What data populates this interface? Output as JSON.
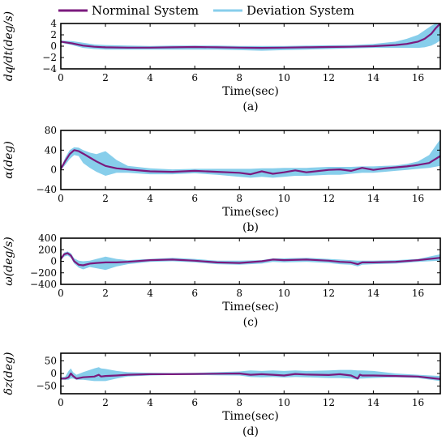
{
  "legend": {
    "items": [
      {
        "label": "Norminal System",
        "color": "#7b1a7e"
      },
      {
        "label": "Deviation System",
        "color": "#87ceeb"
      }
    ]
  },
  "colors": {
    "nominal": "#7b1a7e",
    "deviation": "#87ceeb",
    "axes": "#000000"
  },
  "chart_data": [
    {
      "type": "area",
      "id": "a",
      "caption": "(a)",
      "xlabel": "Time(sec)",
      "ylabel": "dq/dt(deg/s)",
      "xlim": [
        0,
        17
      ],
      "ylim": [
        -4,
        4
      ],
      "xticks": [
        0,
        2,
        4,
        6,
        8,
        10,
        12,
        14,
        16
      ],
      "yticks": [
        -4,
        -2,
        0,
        2,
        4
      ],
      "series": [
        {
          "name": "Norminal System",
          "kind": "line",
          "x": [
            0,
            0.5,
            1,
            1.5,
            2,
            3,
            4,
            5,
            6,
            7,
            8,
            9,
            10,
            11,
            12,
            13,
            14,
            15,
            15.5,
            16,
            16.3,
            16.6,
            16.8,
            17
          ],
          "y": [
            0.8,
            0.5,
            0.1,
            -0.1,
            -0.2,
            -0.25,
            -0.25,
            -0.2,
            -0.15,
            -0.2,
            -0.25,
            -0.3,
            -0.25,
            -0.2,
            -0.15,
            -0.1,
            0,
            0.2,
            0.4,
            0.8,
            1.3,
            2.2,
            3.2,
            4
          ]
        },
        {
          "name": "Deviation System",
          "kind": "band",
          "x": [
            0,
            0.5,
            1,
            1.5,
            2,
            3,
            4,
            5,
            6,
            7,
            8,
            9,
            10,
            11,
            12,
            13,
            14,
            15,
            15.5,
            16,
            16.3,
            16.6,
            16.8,
            17
          ],
          "upper": [
            1.0,
            0.9,
            0.6,
            0.3,
            0.2,
            0.1,
            0.05,
            0.1,
            0.1,
            0.1,
            0.05,
            0.05,
            0.05,
            0.1,
            0.15,
            0.2,
            0.4,
            0.8,
            1.3,
            2.0,
            2.8,
            3.6,
            4,
            4
          ],
          "lower": [
            0.6,
            0.2,
            -0.3,
            -0.5,
            -0.6,
            -0.6,
            -0.6,
            -0.6,
            -0.6,
            -0.6,
            -0.7,
            -0.8,
            -0.7,
            -0.6,
            -0.5,
            -0.4,
            -0.3,
            -0.3,
            -0.3,
            -0.3,
            -0.2,
            0.1,
            0.5,
            1.0
          ]
        }
      ]
    },
    {
      "type": "area",
      "id": "b",
      "caption": "(b)",
      "xlabel": "Time(sec)",
      "ylabel": "α(deg)",
      "xlim": [
        0,
        17
      ],
      "ylim": [
        -40,
        80
      ],
      "xticks": [
        0,
        2,
        4,
        6,
        8,
        10,
        12,
        14,
        16
      ],
      "yticks": [
        -40,
        0,
        40,
        80
      ],
      "series": [
        {
          "name": "Norminal System",
          "kind": "line",
          "x": [
            0,
            0.2,
            0.4,
            0.6,
            0.8,
            1.0,
            1.3,
            1.6,
            2.0,
            2.5,
            3,
            4,
            5,
            6,
            7,
            8,
            8.5,
            9,
            9.5,
            10,
            10.5,
            11,
            12,
            12.5,
            13,
            13.5,
            14,
            14.5,
            15,
            15.5,
            16,
            16.5,
            17
          ],
          "y": [
            2,
            18,
            32,
            40,
            38,
            33,
            25,
            17,
            8,
            3,
            1,
            -3,
            -4,
            -2,
            -4,
            -6,
            -9,
            -3,
            -8,
            -5,
            -1,
            -5,
            0,
            1,
            -2,
            4,
            0,
            3,
            5,
            7,
            10,
            14,
            28
          ]
        },
        {
          "name": "Deviation System",
          "kind": "band",
          "x": [
            0,
            0.2,
            0.4,
            0.6,
            0.8,
            1.0,
            1.3,
            1.6,
            2.0,
            2.5,
            3,
            4,
            5,
            6,
            7,
            8,
            8.5,
            9,
            9.5,
            10,
            10.5,
            11,
            12,
            12.5,
            13,
            13.5,
            14,
            14.5,
            15,
            15.5,
            16,
            16.5,
            17
          ],
          "upper": [
            4,
            25,
            40,
            46,
            45,
            40,
            35,
            32,
            38,
            20,
            8,
            3,
            1,
            2,
            2,
            2,
            2,
            3,
            3,
            4,
            4,
            4,
            6,
            6,
            6,
            7,
            7,
            8,
            9,
            12,
            17,
            30,
            62
          ],
          "lower": [
            0,
            10,
            22,
            30,
            28,
            14,
            4,
            -4,
            -12,
            -6,
            -6,
            -9,
            -9,
            -7,
            -10,
            -14,
            -16,
            -14,
            -16,
            -14,
            -12,
            -12,
            -10,
            -10,
            -8,
            -6,
            -6,
            -4,
            -2,
            0,
            2,
            4,
            8
          ]
        }
      ]
    },
    {
      "type": "area",
      "id": "c",
      "caption": "(c)",
      "xlabel": "Time(sec)",
      "ylabel": "ω(deg/s)",
      "xlim": [
        0,
        17
      ],
      "ylim": [
        -400,
        400
      ],
      "xticks": [
        0,
        2,
        4,
        6,
        8,
        10,
        12,
        14,
        16
      ],
      "yticks": [
        -400,
        -200,
        0,
        200,
        400
      ],
      "series": [
        {
          "name": "Norminal System",
          "kind": "line",
          "x": [
            0,
            0.15,
            0.3,
            0.45,
            0.6,
            0.8,
            1.0,
            1.3,
            1.6,
            2.0,
            2.5,
            3,
            4,
            5,
            6,
            7,
            8,
            9,
            9.5,
            10,
            11,
            12,
            12.5,
            13,
            13.3,
            13.5,
            14,
            15,
            16,
            17
          ],
          "y": [
            40,
            120,
            140,
            100,
            0,
            -60,
            -70,
            -40,
            -30,
            -20,
            -20,
            -10,
            20,
            30,
            10,
            -20,
            -30,
            0,
            30,
            20,
            30,
            10,
            -10,
            -20,
            -50,
            -20,
            -20,
            -10,
            20,
            60
          ]
        },
        {
          "name": "Deviation System",
          "kind": "band",
          "x": [
            0,
            0.15,
            0.3,
            0.45,
            0.6,
            0.8,
            1.0,
            1.3,
            1.6,
            2.0,
            2.5,
            3,
            4,
            5,
            6,
            7,
            8,
            9,
            9.5,
            10,
            11,
            12,
            12.5,
            13,
            13.3,
            13.5,
            14,
            15,
            16,
            17
          ],
          "upper": [
            60,
            150,
            170,
            140,
            50,
            10,
            0,
            10,
            40,
            80,
            40,
            20,
            40,
            60,
            40,
            10,
            10,
            20,
            50,
            50,
            60,
            40,
            30,
            20,
            10,
            10,
            10,
            20,
            40,
            120
          ]
        },
        {
          "name": "Deviation System",
          "kind": "band-lower",
          "x": [
            0,
            0.15,
            0.3,
            0.45,
            0.6,
            0.8,
            1.0,
            1.3,
            1.6,
            2.0,
            2.5,
            3,
            4,
            5,
            6,
            7,
            8,
            9,
            9.5,
            10,
            11,
            12,
            12.5,
            13,
            13.3,
            13.5,
            14,
            15,
            16,
            17
          ],
          "lower": [
            20,
            80,
            100,
            60,
            -40,
            -110,
            -140,
            -100,
            -120,
            -150,
            -90,
            -50,
            -10,
            0,
            -20,
            -50,
            -60,
            -40,
            -10,
            -20,
            -10,
            -30,
            -50,
            -60,
            -90,
            -60,
            -50,
            -40,
            -10,
            10
          ]
        }
      ]
    },
    {
      "type": "area",
      "id": "d",
      "caption": "(d)",
      "xlabel": "Time(sec)",
      "ylabel": "δz(deg)",
      "xlim": [
        0,
        17
      ],
      "ylim": [
        -80,
        80
      ],
      "xticks": [
        0,
        2,
        4,
        6,
        8,
        10,
        12,
        14,
        16
      ],
      "yticks": [
        -50,
        0,
        50
      ],
      "series": [
        {
          "name": "Norminal System",
          "kind": "line",
          "x": [
            0,
            0.2,
            0.35,
            0.45,
            0.55,
            0.7,
            1.0,
            1.5,
            1.7,
            1.8,
            2.0,
            2.5,
            3,
            4,
            5,
            6,
            7,
            8,
            8.5,
            9,
            9.5,
            10,
            10.5,
            11,
            12,
            12.5,
            13,
            13.3,
            13.4,
            13.5,
            14,
            15,
            16,
            17
          ],
          "y": [
            -20,
            -20,
            -15,
            0,
            -10,
            -20,
            -15,
            -12,
            -5,
            -12,
            -10,
            -8,
            -5,
            -3,
            -3,
            -2,
            -1,
            0,
            -5,
            -3,
            -5,
            -8,
            -2,
            -4,
            -6,
            -3,
            -8,
            -20,
            -5,
            -8,
            -8,
            -10,
            -12,
            -22
          ]
        },
        {
          "name": "Deviation System",
          "kind": "band",
          "x": [
            0,
            0.2,
            0.35,
            0.45,
            0.55,
            0.7,
            1.0,
            1.5,
            1.7,
            1.8,
            2.0,
            2.5,
            3,
            4,
            5,
            6,
            7,
            8,
            8.5,
            9,
            9.5,
            10,
            10.5,
            11,
            12,
            12.5,
            13,
            13.3,
            13.4,
            13.5,
            14,
            15,
            16,
            17
          ],
          "upper": [
            -15,
            -12,
            10,
            20,
            5,
            -5,
            5,
            20,
            25,
            20,
            18,
            10,
            5,
            3,
            2,
            3,
            5,
            8,
            12,
            10,
            12,
            10,
            12,
            10,
            12,
            14,
            14,
            12,
            12,
            12,
            10,
            0,
            -5,
            -10
          ],
          "lower": [
            -25,
            -25,
            -25,
            -20,
            -20,
            -25,
            -25,
            -30,
            -30,
            -30,
            -30,
            -20,
            -12,
            -8,
            -6,
            -6,
            -7,
            -8,
            -14,
            -15,
            -14,
            -16,
            -14,
            -15,
            -18,
            -18,
            -20,
            -25,
            -20,
            -20,
            -18,
            -15,
            -18,
            -30
          ]
        }
      ]
    }
  ]
}
